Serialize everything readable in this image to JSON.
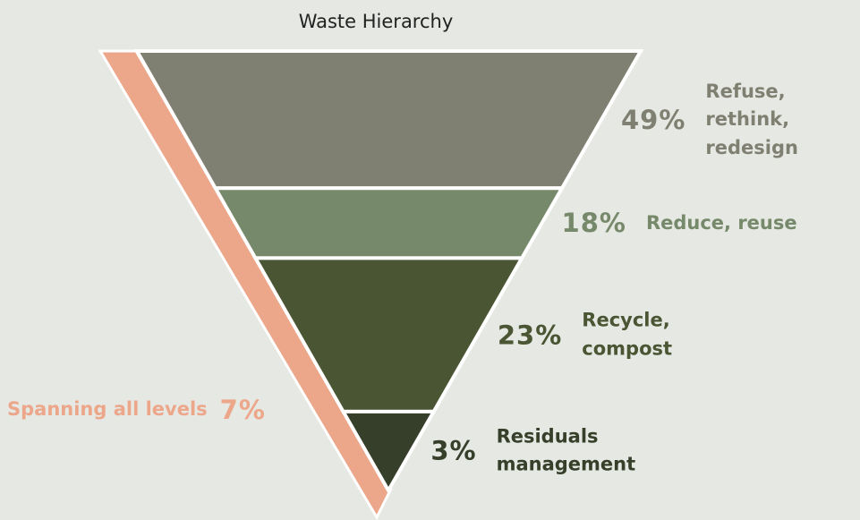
{
  "chart_data": {
    "type": "funnel",
    "title": "Waste Hierarchy",
    "categories": [
      "Refuse, rethink, redesign",
      "Reduce, reuse",
      "Recycle, compost",
      "Residuals management"
    ],
    "values": [
      49,
      18,
      23,
      3
    ],
    "value_labels": [
      "49%",
      "18%",
      "23%",
      "3%"
    ],
    "colors": [
      "#808072",
      "#76896a",
      "#4a5533",
      "#363f2a"
    ],
    "spanning": {
      "name": "Spanning all levels",
      "value": 7,
      "value_label": "7%",
      "color": "#eca78b"
    }
  }
}
